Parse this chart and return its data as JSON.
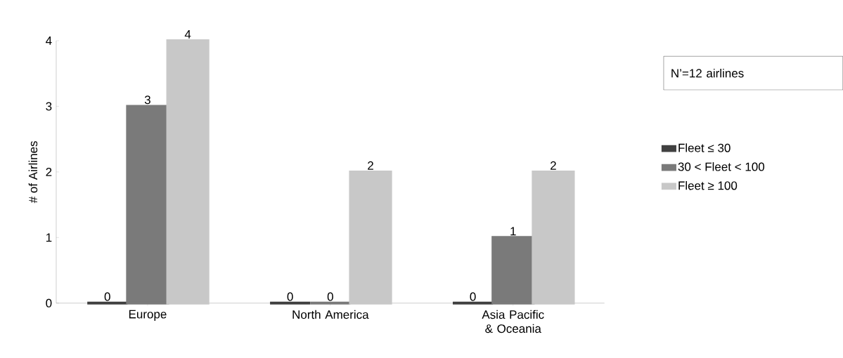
{
  "chart_data": {
    "type": "bar",
    "ylabel": "# of Airlines",
    "categories": [
      "Europe",
      "North America",
      "Asia Pacific & Oceania"
    ],
    "series": [
      {
        "name": "Fleet ≤  30",
        "color": "#404040",
        "values": [
          0,
          0,
          0
        ]
      },
      {
        "name": "30 < Fleet < 100",
        "color": "#7a7a7a",
        "values": [
          3,
          0,
          1
        ]
      },
      {
        "name": "Fleet  ≥ 100",
        "color": "#c8c8c8",
        "values": [
          4,
          2,
          2
        ]
      }
    ],
    "ylim": [
      0,
      4
    ],
    "yticks": [
      0,
      1,
      2,
      3,
      4
    ],
    "data_labels": true,
    "legend": "right",
    "annotations": [
      "N’=12 airlines"
    ]
  }
}
